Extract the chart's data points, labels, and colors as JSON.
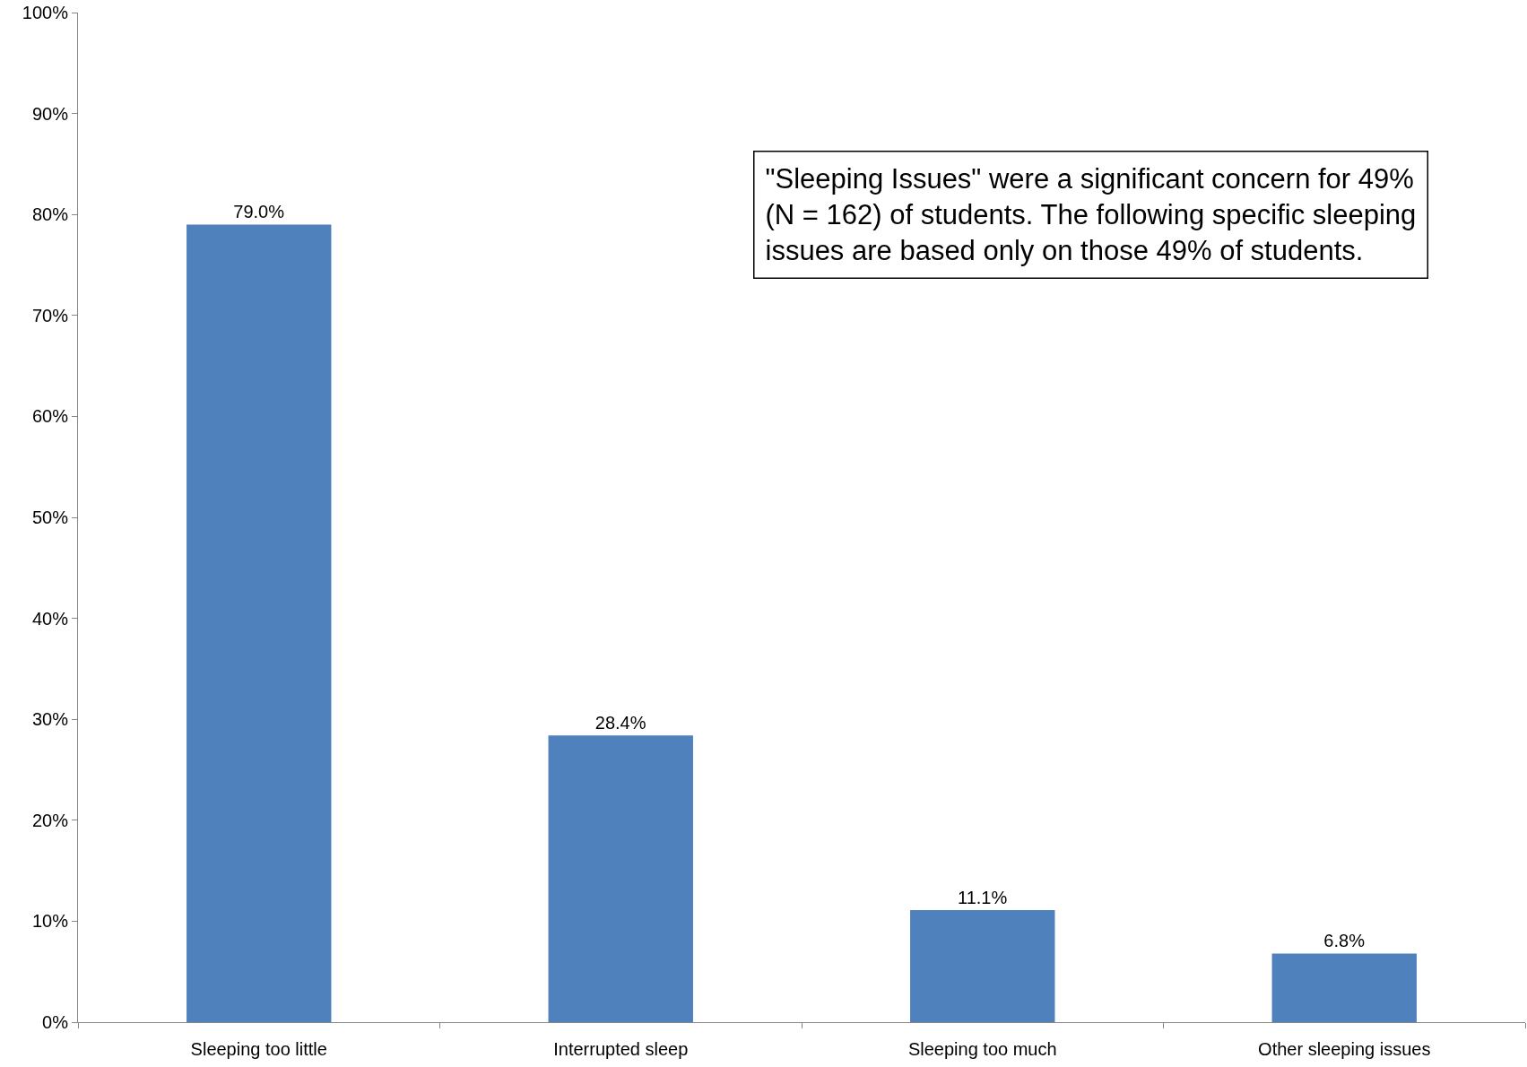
{
  "chart_data": {
    "type": "bar",
    "categories": [
      "Sleeping too little",
      "Interrupted sleep",
      "Sleeping too much",
      "Other sleeping issues"
    ],
    "values": [
      79.0,
      28.4,
      11.1,
      6.8
    ],
    "value_labels": [
      "79.0%",
      "28.4%",
      "11.1%",
      "6.8%"
    ],
    "color": "#4f81bd",
    "ylim": [
      0,
      100
    ],
    "yticks": [
      {
        "value": 0,
        "label": "0%"
      },
      {
        "value": 10,
        "label": "10%"
      },
      {
        "value": 20,
        "label": "20%"
      },
      {
        "value": 30,
        "label": "30%"
      },
      {
        "value": 40,
        "label": "40%"
      },
      {
        "value": 50,
        "label": "50%"
      },
      {
        "value": 60,
        "label": "60%"
      },
      {
        "value": 70,
        "label": "70%"
      },
      {
        "value": 80,
        "label": "80%"
      },
      {
        "value": 90,
        "label": "90%"
      },
      {
        "value": 100,
        "label": "100%"
      }
    ],
    "annotations": [
      "\"Sleeping Issues\" were a significant concern for 49% (N = 162) of students. The following specific sleeping issues are based only on those 49% of students."
    ]
  }
}
